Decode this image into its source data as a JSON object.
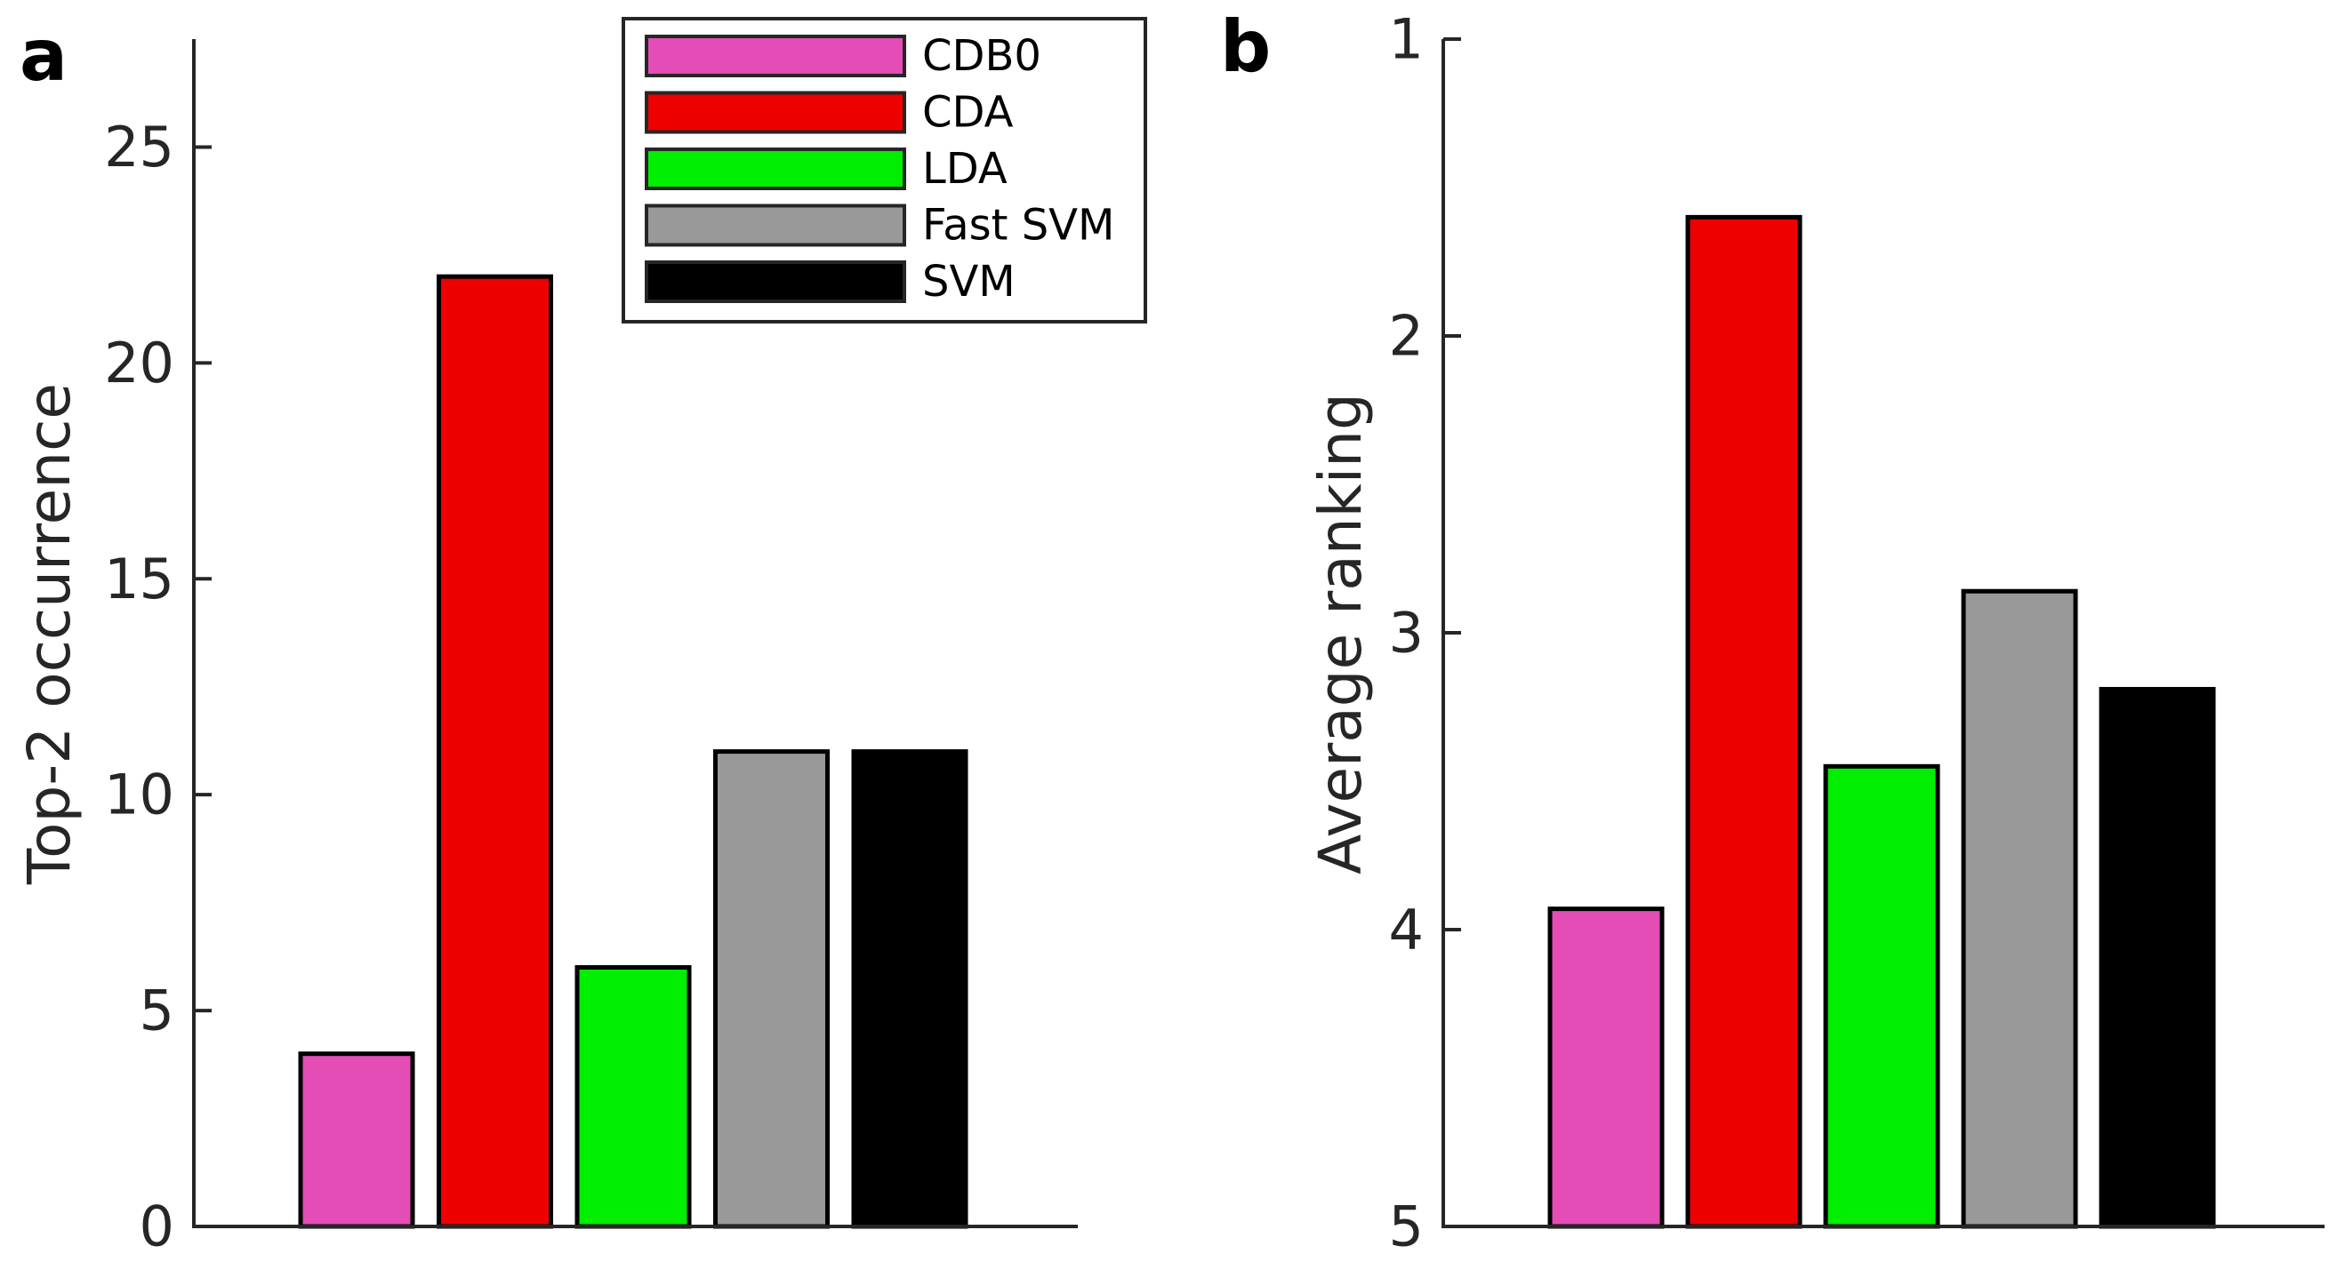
{
  "chart_data": [
    {
      "panel": "a",
      "type": "bar",
      "title": "",
      "xlabel": "",
      "ylabel": "Top-2 occurrence",
      "ylim": [
        0,
        27.5
      ],
      "yticks": [
        0,
        5,
        10,
        15,
        20,
        25
      ],
      "reversed_y": false,
      "legend": "top-right",
      "categories": [
        "CDB0",
        "CDA",
        "LDA",
        "Fast SVM",
        "SVM"
      ],
      "values": [
        4,
        22,
        6,
        11,
        11
      ]
    },
    {
      "panel": "b",
      "type": "bar",
      "title": "",
      "xlabel": "",
      "ylabel": "Average ranking",
      "ylim": [
        1,
        5
      ],
      "yticks": [
        1,
        2,
        3,
        4,
        5
      ],
      "reversed_y": true,
      "categories": [
        "CDB0",
        "CDA",
        "LDA",
        "Fast SVM",
        "SVM"
      ],
      "values": [
        3.93,
        1.6,
        3.45,
        2.86,
        3.19
      ]
    }
  ],
  "legend": {
    "entries": [
      {
        "label": "CDB0",
        "color": "#e34db5"
      },
      {
        "label": "CDA",
        "color": "#ee0000"
      },
      {
        "label": "LDA",
        "color": "#00ee00"
      },
      {
        "label": "Fast SVM",
        "color": "#999999"
      },
      {
        "label": "SVM",
        "color": "#000000"
      }
    ]
  },
  "colors": [
    "#e34db5",
    "#ee0000",
    "#00ee00",
    "#999999",
    "#000000"
  ]
}
